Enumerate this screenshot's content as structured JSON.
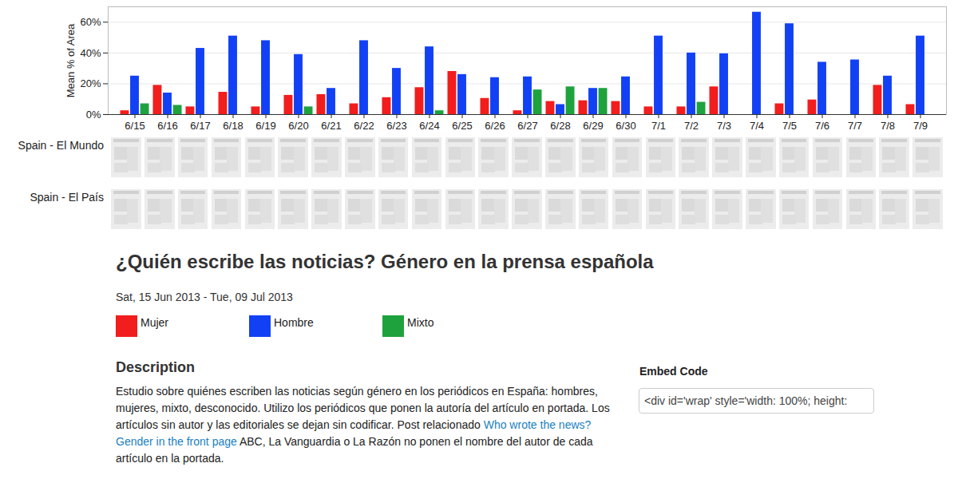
{
  "chart_data": {
    "type": "bar",
    "title": "¿Quién escribe las noticias? Género en la prensa española",
    "subtitle": "Sat, 15 Jun 2013 - Tue, 09 Jul 2013",
    "y_label": "Mean % of Area",
    "categories": [
      "6/15",
      "6/16",
      "6/17",
      "6/18",
      "6/19",
      "6/20",
      "6/21",
      "6/22",
      "6/23",
      "6/24",
      "6/25",
      "6/26",
      "6/27",
      "6/28",
      "6/29",
      "6/30",
      "7/1",
      "7/2",
      "7/3",
      "7/4",
      "7/5",
      "7/6",
      "7/7",
      "7/8",
      "7/9"
    ],
    "series": [
      {
        "name": "Mujer",
        "color": "#f21d1d",
        "values": [
          2.5,
          19,
          5,
          14.5,
          5,
          12.5,
          13,
          7,
          11,
          17.5,
          28,
          10.5,
          2.5,
          8.5,
          9,
          8.5,
          5,
          5,
          18,
          0,
          7,
          9.5,
          0,
          19,
          6.5
        ]
      },
      {
        "name": "Hombre",
        "color": "#1241f5",
        "values": [
          25,
          14,
          43,
          51,
          48,
          39,
          17,
          48,
          30,
          44,
          26,
          24,
          24.5,
          6.5,
          17,
          24.5,
          51,
          40,
          39.5,
          66.5,
          59,
          34,
          35.5,
          25,
          51
        ]
      },
      {
        "name": "Mixto",
        "color": "#1ea23e",
        "values": [
          7,
          6,
          0,
          0,
          0,
          5,
          0,
          0,
          0,
          2.5,
          0,
          0,
          16,
          18,
          17,
          0,
          0,
          8,
          0,
          0,
          0,
          0,
          0,
          0,
          0
        ]
      }
    ],
    "ylim": [
      0,
      70
    ],
    "yticks": [
      {
        "value": 0,
        "label": "0%"
      },
      {
        "value": 20,
        "label": "20%"
      },
      {
        "value": 40,
        "label": "40%"
      },
      {
        "value": 60,
        "label": "60%"
      }
    ],
    "grid": true,
    "legend": "bottom"
  },
  "page": {
    "rows": [
      "Spain - El Mundo",
      "Spain - El País"
    ],
    "description_heading": "Description",
    "description": {
      "before": "Estudio sobre quiénes escriben las noticias según género en los periódicos en España: hombres, mujeres, mixto, desconocido. Utilizo los periódicos que ponen la autoría del artículo en portada. Los artículos sin autor y las editoriales se dejan sin codificar. Post relacionado",
      "link": "Who wrote the news?Gender in the front page",
      "after": "ABC, La Vanguardia o La Razón no ponen el nombre del autor de cada artículo en la portada."
    },
    "embed_heading": "Embed Code",
    "embed_code": "<div id='wrap' style='width: 100%; height:"
  }
}
